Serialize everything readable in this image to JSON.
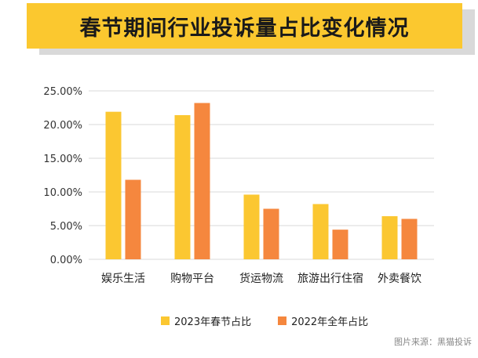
{
  "header": {
    "title": "春节期间行业投诉量占比变化情况"
  },
  "colors": {
    "series_2023": "#fbc731",
    "series_2022": "#f5873e",
    "banner": "#fbc82f",
    "grid": "#d9d9d9"
  },
  "source": "图片来源：黑猫投诉",
  "chart_data": {
    "type": "bar",
    "title": "春节期间行业投诉量占比变化情况",
    "categories": [
      "娱乐生活",
      "购物平台",
      "货运物流",
      "旅游出行住宿",
      "外卖餐饮"
    ],
    "series": [
      {
        "name": "2023年春节占比",
        "values": [
          21.9,
          21.4,
          9.6,
          8.2,
          6.4
        ]
      },
      {
        "name": "2022年全年占比",
        "values": [
          11.8,
          23.2,
          7.5,
          4.4,
          6.0
        ]
      }
    ],
    "y_ticks": [
      "0.00%",
      "5.00%",
      "10.00%",
      "15.00%",
      "20.00%",
      "25.00%"
    ],
    "ylim": [
      0,
      25
    ],
    "grid": true,
    "legend_position": "bottom",
    "xlabel": "",
    "ylabel": ""
  }
}
